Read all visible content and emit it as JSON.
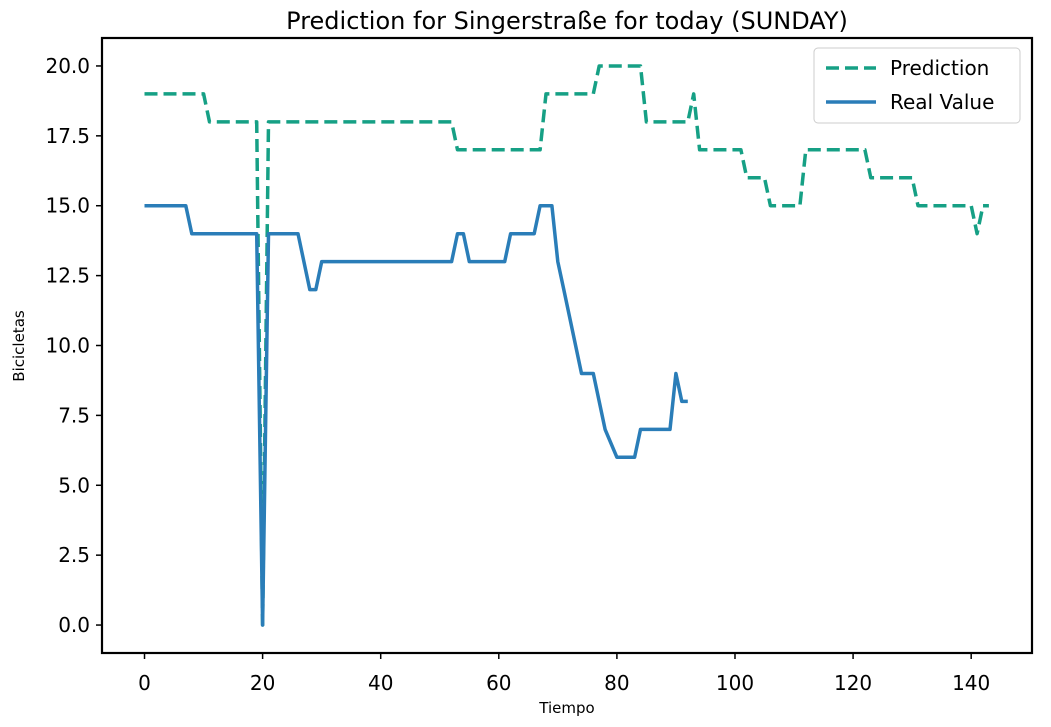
{
  "chart_data": {
    "type": "line",
    "title": "Prediction for Singerstraße for today (SUNDAY)",
    "xlabel": "Tiempo",
    "ylabel": "Bicicletas",
    "xlim": [
      -7.2,
      150.3
    ],
    "ylim": [
      -1.0,
      21.0
    ],
    "xticks": [
      0,
      20,
      40,
      60,
      80,
      100,
      120,
      140
    ],
    "yticks": [
      0.0,
      2.5,
      5.0,
      7.5,
      10.0,
      12.5,
      15.0,
      17.5,
      20.0
    ],
    "ytick_labels": [
      "0.0",
      "2.5",
      "5.0",
      "7.5",
      "10.0",
      "12.5",
      "15.0",
      "17.5",
      "20.0"
    ],
    "xtick_labels": [
      "0",
      "20",
      "40",
      "60",
      "80",
      "100",
      "120",
      "140"
    ],
    "grid": false,
    "legend": "top-right",
    "series": [
      {
        "name": "Prediction",
        "color": "#16a085",
        "style": "dashed",
        "x": [
          0,
          10,
          11,
          19,
          20,
          21,
          52,
          53,
          67,
          68,
          76,
          77,
          84,
          85,
          92,
          93,
          94,
          101,
          102,
          105,
          106,
          111,
          112,
          122,
          123,
          130,
          131,
          140,
          141,
          142,
          143
        ],
        "y": [
          19,
          19,
          18,
          18,
          0,
          18,
          18,
          17,
          17,
          19,
          19,
          20,
          20,
          18,
          18,
          19,
          17,
          17,
          16,
          16,
          15,
          15,
          17,
          17,
          16,
          16,
          15,
          15,
          14,
          15,
          15
        ]
      },
      {
        "name": "Real Value",
        "color": "#2a7db8",
        "style": "solid",
        "x": [
          0,
          7,
          8,
          19,
          20,
          21,
          26,
          28,
          29,
          30,
          52,
          53,
          54,
          55,
          61,
          62,
          66,
          67,
          69,
          70,
          71,
          72,
          74,
          76,
          78,
          80,
          83,
          84,
          89,
          90,
          91,
          92
        ],
        "y": [
          15,
          15,
          14,
          14,
          0,
          14,
          14,
          12,
          12,
          13,
          13,
          14,
          14,
          13,
          13,
          14,
          14,
          15,
          15,
          13,
          12,
          11,
          9,
          9,
          7,
          6,
          6,
          7,
          7,
          9,
          8,
          8
        ]
      }
    ]
  }
}
